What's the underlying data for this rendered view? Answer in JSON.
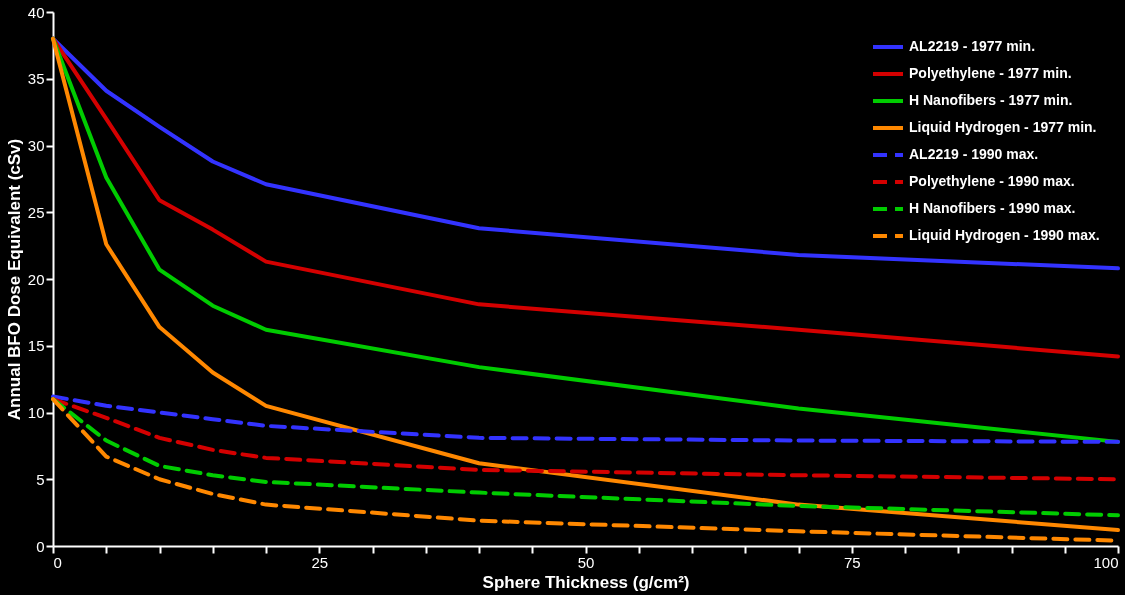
{
  "chart_data": {
    "type": "line",
    "xlabel": "Sphere Thickness (g/cm²)",
    "ylabel": "Annual BFO Dose Equivalent (cSv)",
    "x": [
      0,
      5,
      10,
      15,
      20,
      40,
      70,
      100
    ],
    "series": [
      {
        "name": "AL2219 - 1977 min.",
        "color": "#3333ff",
        "line_style": "solid",
        "values": [
          38,
          34.1,
          31.4,
          28.8,
          27.1,
          23.8,
          21.8,
          20.8
        ]
      },
      {
        "name": "Polyethylene - 1977 min.",
        "color": "#d40000",
        "line_style": "solid",
        "values": [
          38,
          32,
          25.9,
          23.7,
          21.3,
          18.1,
          16.2,
          14.2
        ]
      },
      {
        "name": "H Nanofibers - 1977 min.",
        "color": "#00cc00",
        "line_style": "solid",
        "values": [
          38,
          27.6,
          20.7,
          18,
          16.2,
          13.4,
          10.3,
          7.8
        ]
      },
      {
        "name": "Liquid Hydrogen - 1977 min.",
        "color": "#ff8800",
        "line_style": "solid",
        "values": [
          38,
          22.6,
          16.4,
          13,
          10.5,
          6.2,
          3.1,
          1.2
        ]
      },
      {
        "name": "AL2219 - 1990 max.",
        "color": "#3333ff",
        "line_style": "dashed",
        "values": [
          11.2,
          10.5,
          10,
          9.5,
          9,
          8.1,
          7.9,
          7.8
        ]
      },
      {
        "name": "Polyethylene - 1990 max.",
        "color": "#d40000",
        "line_style": "dashed",
        "values": [
          11,
          9.6,
          8.1,
          7.2,
          6.6,
          5.7,
          5.3,
          5
        ]
      },
      {
        "name": "H Nanofibers - 1990 max.",
        "color": "#00cc00",
        "line_style": "dashed",
        "values": [
          11,
          7.9,
          6,
          5.3,
          4.8,
          4,
          3,
          2.3
        ]
      },
      {
        "name": "Liquid Hydrogen - 1990 max.",
        "color": "#ff8800",
        "line_style": "dashed",
        "values": [
          11,
          6.7,
          5,
          3.9,
          3.1,
          1.9,
          1.1,
          0.4
        ]
      }
    ],
    "xlim": [
      0,
      100
    ],
    "xticks": [
      0,
      {
        "value": 5,
        "label": null
      },
      {
        "value": 10,
        "label": null
      },
      {
        "value": 15,
        "label": null
      },
      {
        "value": 20,
        "label": null
      },
      25,
      {
        "value": 30,
        "label": null
      },
      {
        "value": 35,
        "label": null
      },
      {
        "value": 40,
        "label": null
      },
      {
        "value": 45,
        "label": null
      },
      50,
      {
        "value": 55,
        "label": null
      },
      {
        "value": 60,
        "label": null
      },
      {
        "value": 65,
        "label": null
      },
      {
        "value": 70,
        "label": null
      },
      75,
      {
        "value": 80,
        "label": null
      },
      {
        "value": 85,
        "label": null
      },
      {
        "value": 90,
        "label": null
      },
      {
        "value": 95,
        "label": null
      },
      100
    ],
    "ylim": [
      0,
      40
    ],
    "yticks": [
      0,
      5,
      10,
      15,
      20,
      25,
      30,
      35,
      40
    ],
    "legend": "top right",
    "grid": false
  }
}
